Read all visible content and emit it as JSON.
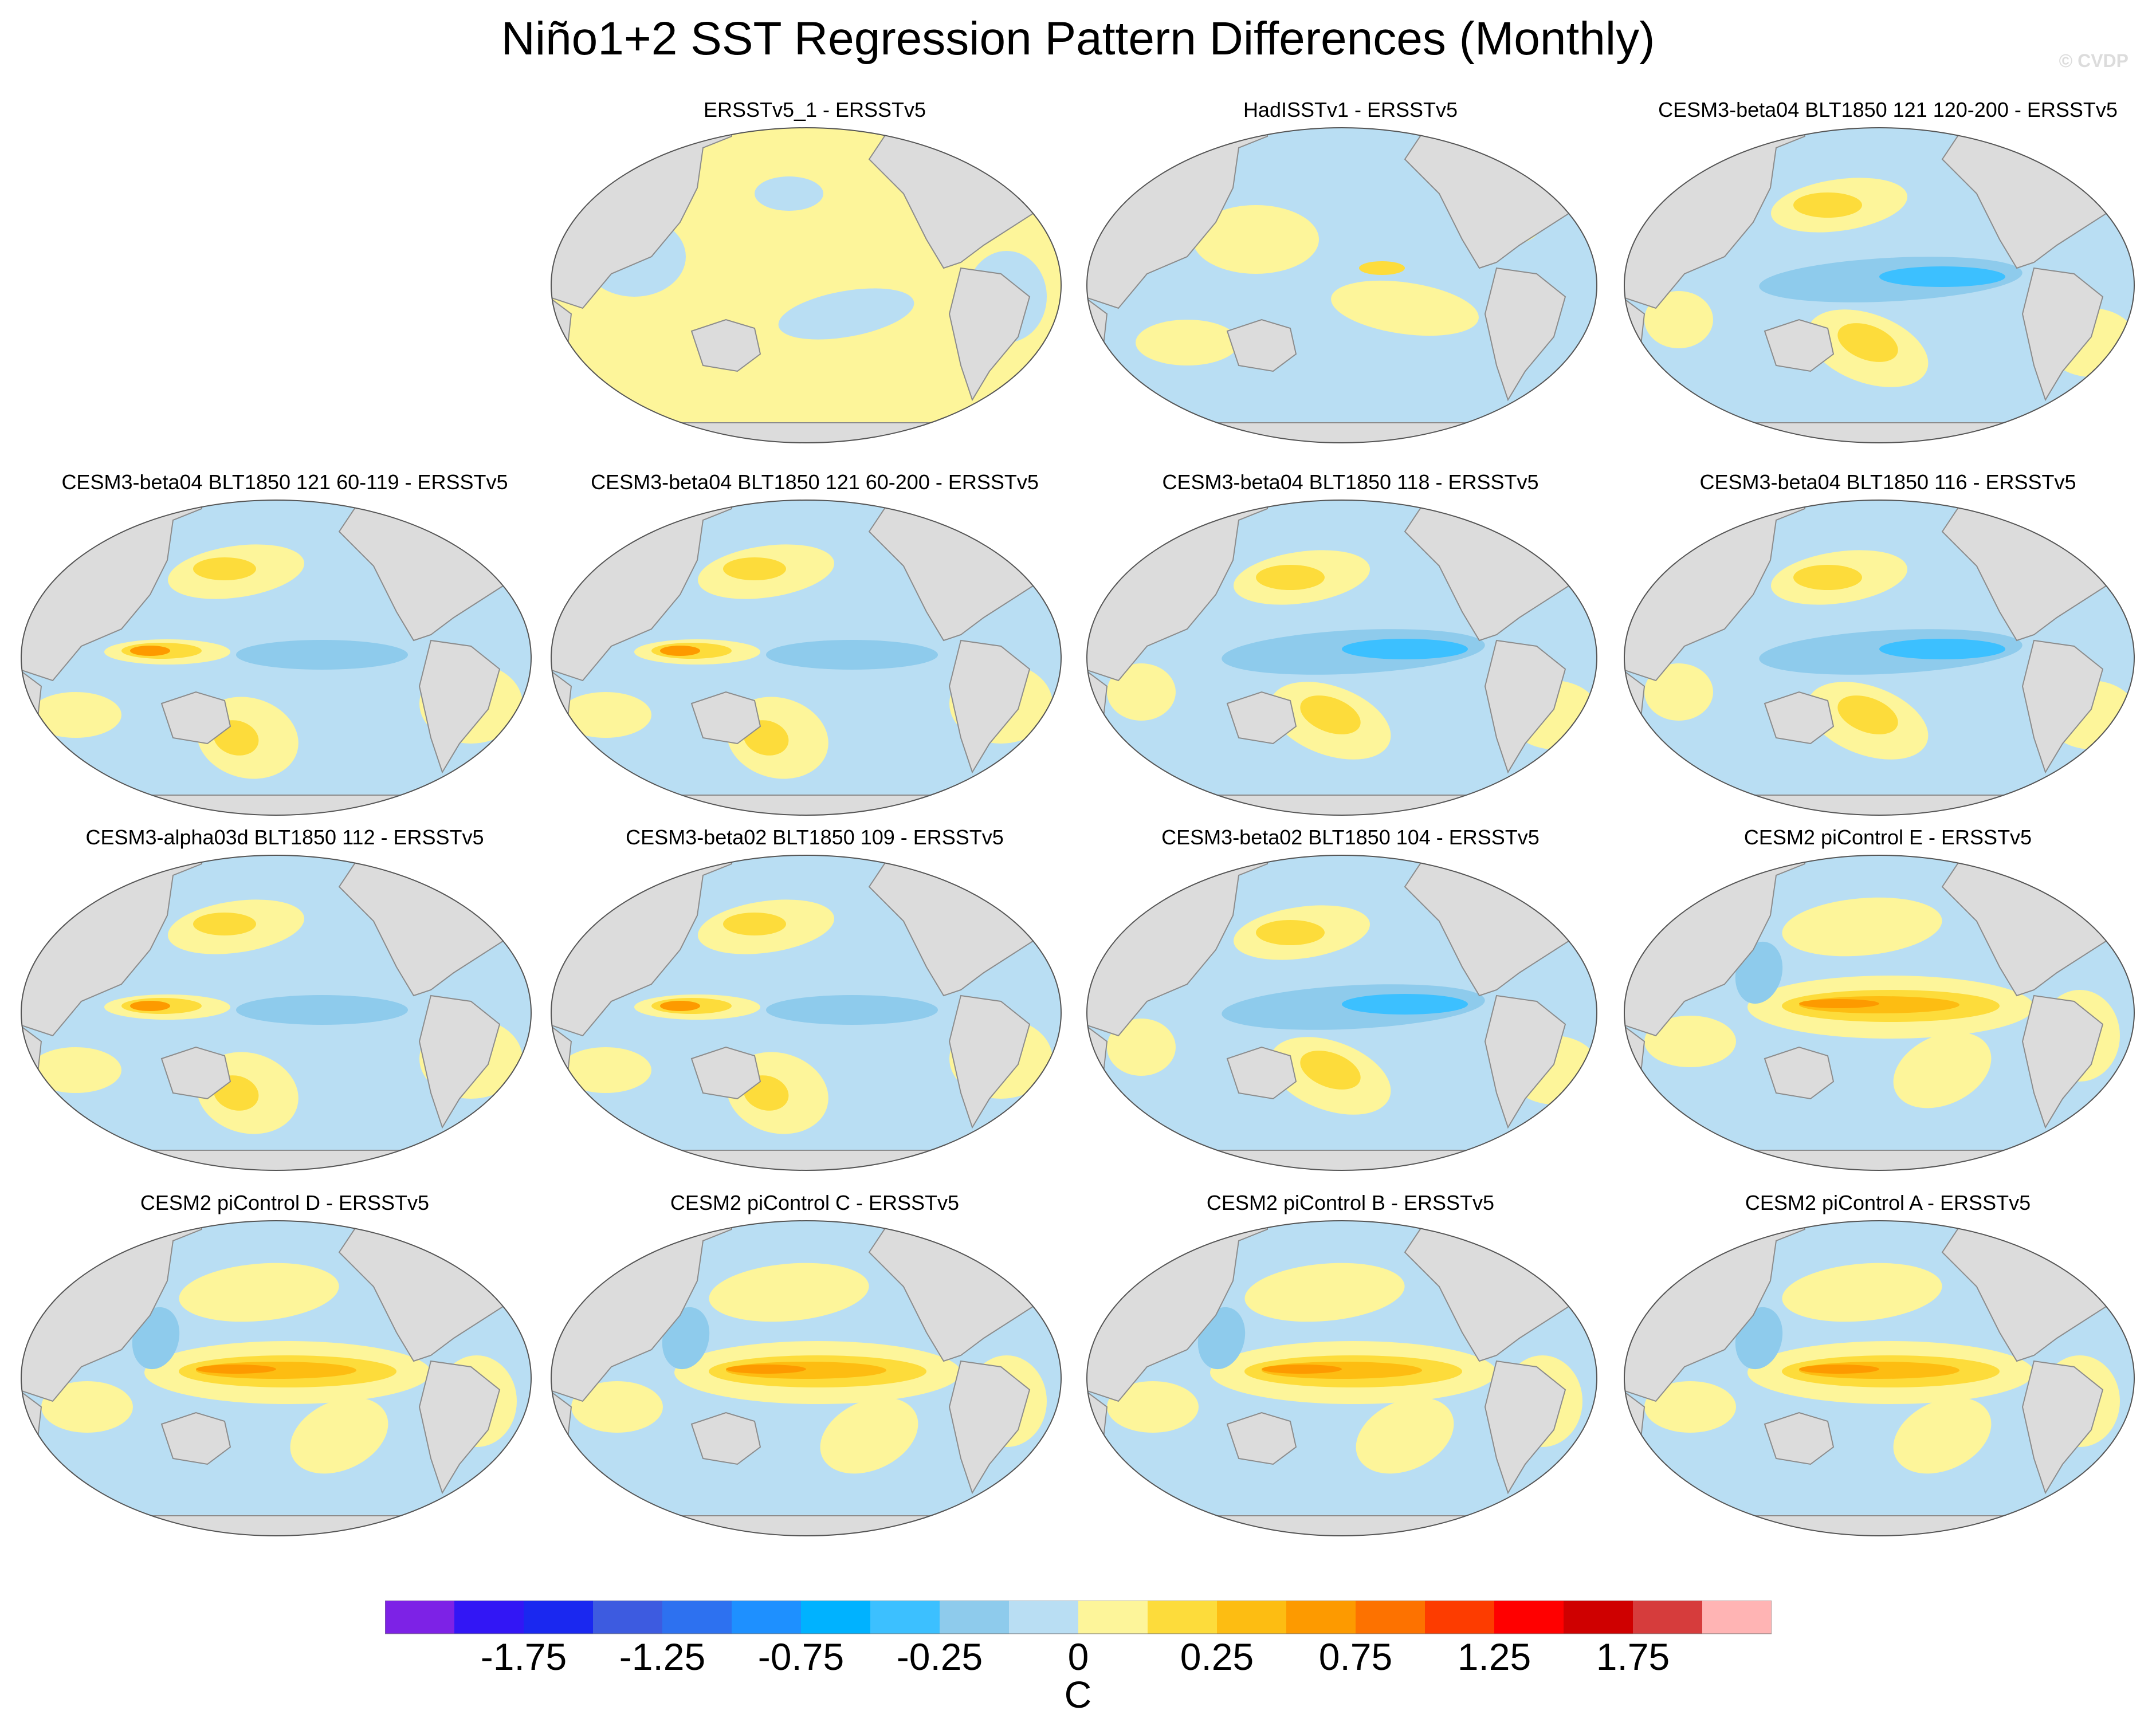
{
  "title": "Niño1+2 SST Regression Pattern Differences (Monthly)",
  "watermark": "© CVDP",
  "units": "C",
  "colors": {
    "land": "#dcdcdc",
    "coast": "#8c8c8c",
    "neg_light": "#b9def3",
    "neg_mid": "#8ecbec",
    "neg_strong": "#3cc0ff",
    "pos_light": "#fdf59a",
    "pos_mid": "#fddc3b",
    "pos_strong": "#fdbd12",
    "pos_orange": "#fd9a00"
  },
  "colorbar": {
    "colors": [
      "#7d22e6",
      "#3216f5",
      "#1a28f0",
      "#3d5be0",
      "#2d71f0",
      "#1e90ff",
      "#00b2ff",
      "#3cc0ff",
      "#8ecbec",
      "#b9def3",
      "#fdf59a",
      "#fddc3b",
      "#fdbd12",
      "#fd9a00",
      "#fd7200",
      "#fd3c00",
      "#ff0000",
      "#cf0000",
      "#d63c3c",
      "#ffb4b4"
    ],
    "labels": [
      "-1.75",
      "-1.25",
      "-0.75",
      "-0.25",
      "0",
      "0.25",
      "0.75",
      "1.25",
      "1.75"
    ]
  },
  "panels": [
    {
      "title": "ERSSTv5_1 - ERSSTv5",
      "style": "obs"
    },
    {
      "title": "HadISSTv1 - ERSSTv5",
      "style": "obs2"
    },
    {
      "title": "CESM3-beta04 BLT1850 121 120-200 - ERSSTv5",
      "style": "cold"
    },
    {
      "title": "CESM3-beta04 BLT1850 121 60-119 - ERSSTv5",
      "style": "mixed"
    },
    {
      "title": "CESM3-beta04 BLT1850 121 60-200 - ERSSTv5",
      "style": "mixed"
    },
    {
      "title": "CESM3-beta04 BLT1850 118 - ERSSTv5",
      "style": "cold"
    },
    {
      "title": "CESM3-beta04 BLT1850 116 - ERSSTv5",
      "style": "cold"
    },
    {
      "title": "CESM3-alpha03d BLT1850 112 - ERSSTv5",
      "style": "mixed"
    },
    {
      "title": "CESM3-beta02 BLT1850 109 - ERSSTv5",
      "style": "mixed"
    },
    {
      "title": "CESM3-beta02 BLT1850 104 - ERSSTv5",
      "style": "cold"
    },
    {
      "title": "CESM2 piControl E - ERSSTv5",
      "style": "warm"
    },
    {
      "title": "CESM2 piControl D - ERSSTv5",
      "style": "warm"
    },
    {
      "title": "CESM2 piControl C - ERSSTv5",
      "style": "warm"
    },
    {
      "title": "CESM2 piControl B - ERSSTv5",
      "style": "warm"
    },
    {
      "title": "CESM2 piControl A - ERSSTv5",
      "style": "warm"
    }
  ]
}
